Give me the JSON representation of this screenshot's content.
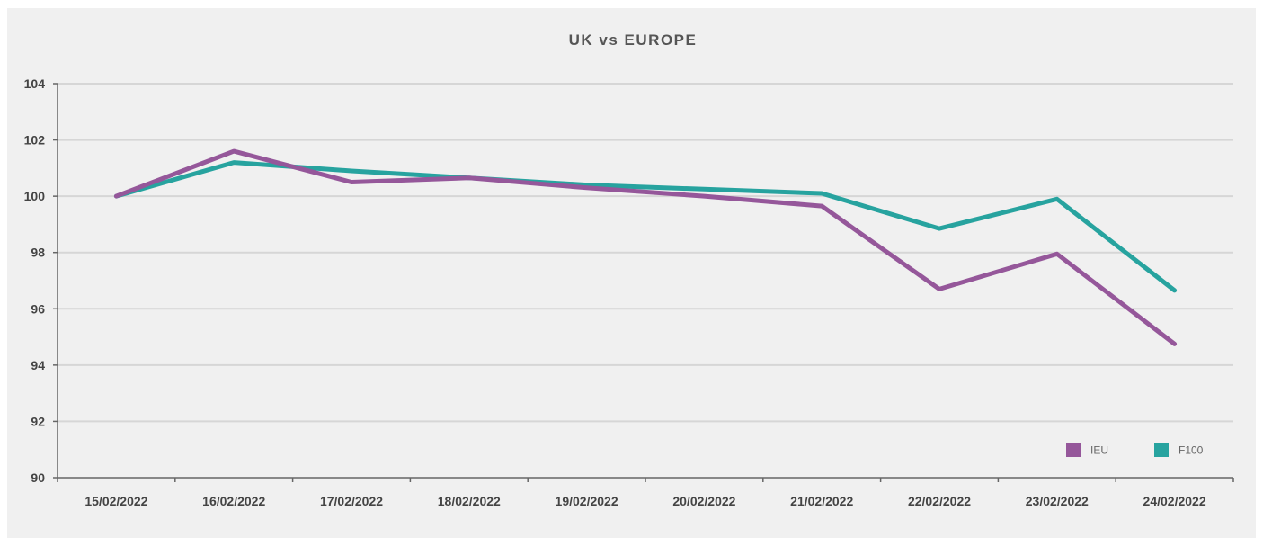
{
  "chart_data": {
    "type": "line",
    "title": "UK vs EUROPE",
    "xlabel": "",
    "ylabel": "",
    "categories": [
      "15/02/2022",
      "16/02/2022",
      "17/02/2022",
      "18/02/2022",
      "19/02/2022",
      "20/02/2022",
      "21/02/2022",
      "22/02/2022",
      "23/02/2022",
      "24/02/2022"
    ],
    "ylim": [
      90,
      104
    ],
    "yticks": [
      90,
      92,
      94,
      96,
      98,
      100,
      102,
      104
    ],
    "grid": true,
    "legend_position": "bottom-right",
    "series": [
      {
        "name": "IEU",
        "color": "#95579a",
        "values": [
          100.0,
          101.6,
          100.5,
          100.65,
          100.3,
          100.0,
          99.65,
          96.7,
          97.95,
          94.75
        ]
      },
      {
        "name": "F100",
        "color": "#27a39f",
        "values": [
          100.0,
          101.2,
          100.9,
          100.65,
          100.4,
          100.25,
          100.1,
          98.85,
          99.9,
          96.65
        ]
      }
    ]
  }
}
